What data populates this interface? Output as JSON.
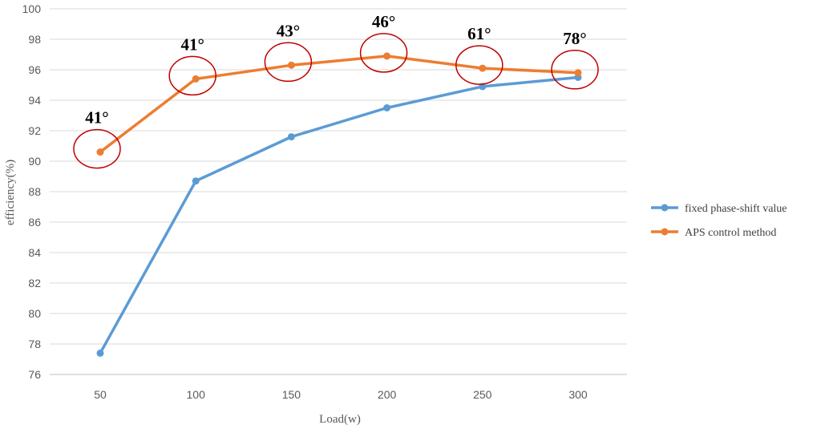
{
  "chart_data": {
    "type": "line",
    "title": "",
    "xlabel": "Load(w)",
    "ylabel": "efficiency(%)",
    "categories": [
      "50",
      "100",
      "150",
      "200",
      "250",
      "300"
    ],
    "ylim": [
      76,
      100
    ],
    "yticks": [
      "76",
      "78",
      "80",
      "82",
      "84",
      "86",
      "88",
      "90",
      "92",
      "94",
      "96",
      "98",
      "100"
    ],
    "grid": "horizontal",
    "legend_position": "right",
    "series": [
      {
        "name": "fixed phase-shift value",
        "color": "#5b9bd5",
        "values": [
          77.4,
          88.7,
          91.6,
          93.5,
          94.9,
          95.5
        ]
      },
      {
        "name": "APS control method",
        "color": "#ed7d31",
        "values": [
          90.6,
          95.4,
          96.3,
          96.9,
          96.1,
          95.8
        ]
      }
    ],
    "annotations": {
      "marker_color": "#c00000",
      "angles": [
        "41°",
        "41°",
        "43°",
        "46°",
        "61°",
        "78°"
      ]
    }
  }
}
